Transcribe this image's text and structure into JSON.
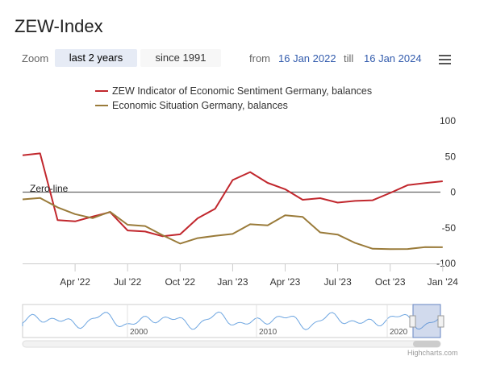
{
  "title": "ZEW-Index",
  "toolbar": {
    "zoom_label": "Zoom",
    "buttons": [
      "last 2 years",
      "since 1991"
    ],
    "from_label": "from",
    "from_value": "16 Jan 2022",
    "till_label": "till",
    "till_value": "16 Jan 2024"
  },
  "credits": "Highcharts.com",
  "colors": {
    "sentiment": "#c1272d",
    "situation": "#9a7b3a",
    "navigator": "#4a90d9",
    "axis": "#aaaaaa"
  },
  "chart_data": {
    "type": "line",
    "x": [
      "Jan '22",
      "Feb '22",
      "Mar '22",
      "Apr '22",
      "May '22",
      "Jun '22",
      "Jul '22",
      "Aug '22",
      "Sep '22",
      "Oct '22",
      "Nov '22",
      "Dec '22",
      "Jan '23",
      "Feb '23",
      "Mar '23",
      "Apr '23",
      "May '23",
      "Jun '23",
      "Jul '23",
      "Aug '23",
      "Sep '23",
      "Oct '23",
      "Nov '23",
      "Dec '23",
      "Jan '24"
    ],
    "x_tick_labels": [
      "Apr '22",
      "Jul '22",
      "Oct '22",
      "Jan '23",
      "Apr '23",
      "Jul '23",
      "Oct '23",
      "Jan '24"
    ],
    "y_tick_labels": [
      "100",
      "50",
      "0",
      "-50",
      "-100"
    ],
    "ylim": [
      -100,
      100
    ],
    "plot_line_label": "Zero-line",
    "series": [
      {
        "name": "ZEW Indicator of Economic Sentiment Germany, balances",
        "values": [
          51.7,
          54.3,
          -39.3,
          -41.0,
          -34.3,
          -28.0,
          -53.8,
          -55.3,
          -61.9,
          -59.2,
          -36.7,
          -23.3,
          16.9,
          28.1,
          13.0,
          4.1,
          -10.7,
          -8.5,
          -14.7,
          -12.3,
          -11.4,
          -1.1,
          9.8,
          12.8,
          15.2
        ]
      },
      {
        "name": "Economic Situation Germany, balances",
        "values": [
          -10.2,
          -8.1,
          -21.4,
          -30.8,
          -36.5,
          -27.6,
          -45.8,
          -47.6,
          -60.5,
          -72.2,
          -64.5,
          -61.4,
          -58.6,
          -45.1,
          -46.5,
          -32.5,
          -34.8,
          -56.5,
          -59.5,
          -71.3,
          -79.4,
          -79.9,
          -79.8,
          -77.1,
          -77.3
        ]
      }
    ]
  },
  "navigator": {
    "year_labels": [
      "2000",
      "2010",
      "2020"
    ]
  }
}
